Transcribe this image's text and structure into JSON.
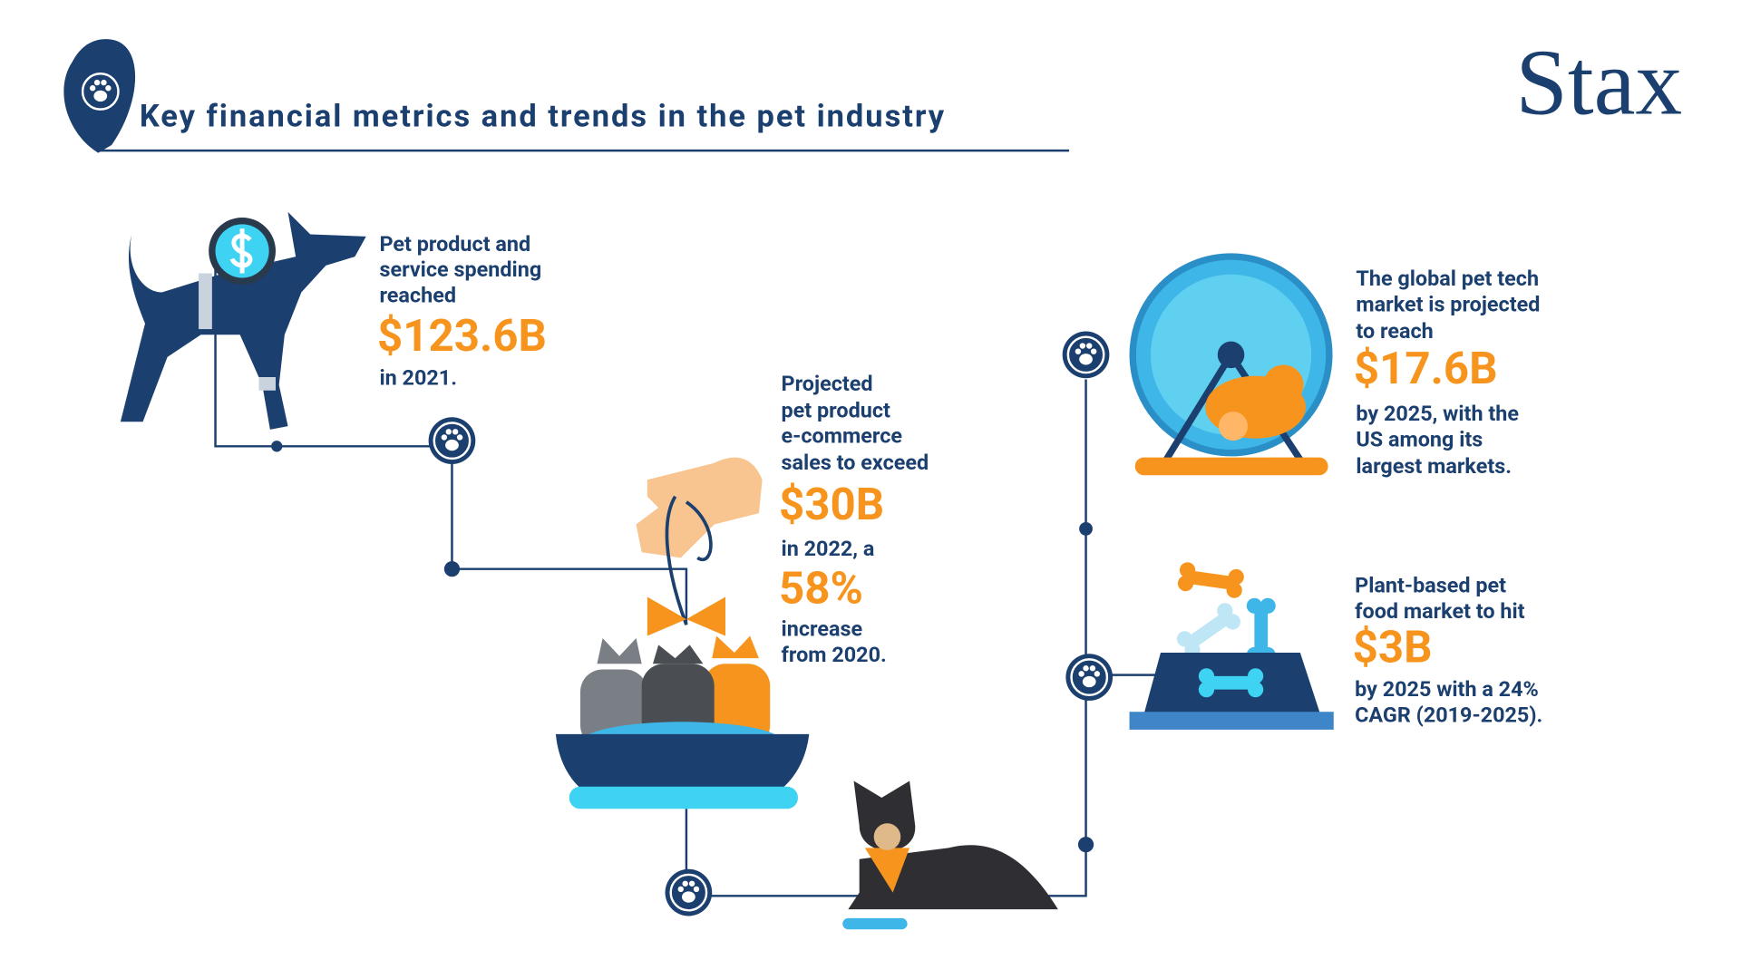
{
  "header": {
    "title": "Key financial metrics and trends in the pet industry",
    "logo": "Stax"
  },
  "metrics": [
    {
      "lead": [
        "Pet product and",
        "service spending",
        "reached"
      ],
      "value": "$123.6B",
      "tail": [
        "in 2021."
      ]
    },
    {
      "lead": [
        "Projected",
        "pet product",
        "e-commerce",
        "sales to exceed"
      ],
      "value": "$30B",
      "middle": [
        "in 2022, a"
      ],
      "value2": "58%",
      "tail": [
        "increase",
        "from 2020."
      ]
    },
    {
      "lead": [
        "The global pet tech",
        "market is projected",
        "to reach"
      ],
      "value": "$17.6B",
      "tail": [
        "by 2025, with the",
        "US among its",
        "largest markets."
      ]
    },
    {
      "lead": [
        "Plant-based pet",
        "food market to hit"
      ],
      "value": "$3B",
      "tail": [
        "by 2025 with a 24%",
        "CAGR (2019-2025)."
      ]
    }
  ]
}
